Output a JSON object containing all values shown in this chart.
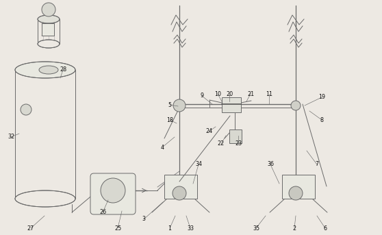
{
  "bg_color": "#ede9e3",
  "line_color": "#6a6a6a",
  "lw": 0.7,
  "fig_width": 5.58,
  "fig_height": 3.43,
  "dpi": 100
}
